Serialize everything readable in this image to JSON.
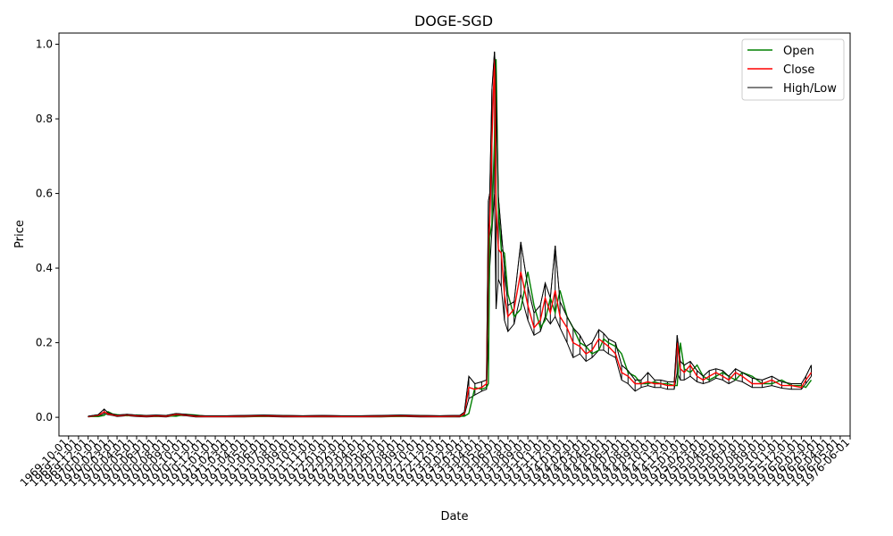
{
  "chart_data": {
    "type": "line",
    "title": "DOGE-SGD",
    "xlabel": "Date",
    "ylabel": "Price",
    "ylim": [
      -0.05,
      1.03
    ],
    "yticks": [
      0.0,
      0.2,
      0.4,
      0.6,
      0.8,
      1.0
    ],
    "ytick_labels": [
      "0.0",
      "0.2",
      "0.4",
      "0.6",
      "0.8",
      "1.0"
    ],
    "xlim": [
      "1969-09-01",
      "1976-06-01"
    ],
    "xtick_labels": [
      "1969-10-01",
      "1969-11-01",
      "1969-12-01",
      "1970-01-01",
      "1970-02-01",
      "1970-03-01",
      "1970-04-01",
      "1970-05-01",
      "1970-06-01",
      "1970-07-01",
      "1970-08-01",
      "1970-09-01",
      "1970-10-01",
      "1970-11-01",
      "1970-12-01",
      "1971-01-01",
      "1971-02-01",
      "1971-03-01",
      "1971-04-01",
      "1971-05-01",
      "1971-06-01",
      "1971-07-01",
      "1971-08-01",
      "1971-09-01",
      "1971-10-01",
      "1971-11-01",
      "1971-12-01",
      "1972-01-01",
      "1972-02-01",
      "1972-03-01",
      "1972-04-01",
      "1972-05-01",
      "1972-06-01",
      "1972-07-01",
      "1972-08-01",
      "1972-09-01",
      "1972-10-01",
      "1972-11-01",
      "1972-12-01",
      "1973-01-01",
      "1973-02-01",
      "1973-03-01",
      "1973-04-01",
      "1973-05-01",
      "1973-06-01",
      "1973-07-01",
      "1973-08-01",
      "1973-09-01",
      "1973-10-01",
      "1973-11-01",
      "1973-12-01",
      "1974-01-01",
      "1974-02-01",
      "1974-03-01",
      "1974-04-01",
      "1974-05-01",
      "1974-06-01",
      "1974-07-01",
      "1974-08-01",
      "1974-09-01",
      "1974-10-01",
      "1974-11-01",
      "1974-12-01",
      "1975-01-01",
      "1975-02-01",
      "1975-03-01",
      "1975-04-01",
      "1975-05-01",
      "1975-06-01",
      "1975-07-01",
      "1975-08-01",
      "1975-09-01",
      "1975-10-01",
      "1975-11-01",
      "1975-12-01",
      "1976-01-01",
      "1976-02-01",
      "1976-03-01",
      "1976-04-01",
      "1976-05-01",
      "1976-06-01"
    ],
    "legend": {
      "position": "top-right",
      "entries": [
        "Open",
        "Close",
        "High/Low"
      ]
    },
    "grid": false,
    "series": [
      {
        "name": "Open",
        "color": "#008000",
        "role": "open"
      },
      {
        "name": "Close",
        "color": "#ff0000",
        "role": "close"
      },
      {
        "name": "High/Low",
        "color": "#000000",
        "role": "highlow"
      }
    ],
    "x": [
      "1969-12-01",
      "1970-01-01",
      "1970-01-20",
      "1970-02-01",
      "1970-02-15",
      "1970-03-01",
      "1970-04-01",
      "1970-05-01",
      "1970-06-01",
      "1970-07-01",
      "1970-08-01",
      "1970-09-01",
      "1970-10-01",
      "1970-11-01",
      "1970-12-01",
      "1971-02-01",
      "1971-04-01",
      "1971-06-01",
      "1971-08-01",
      "1971-10-01",
      "1971-12-01",
      "1972-02-01",
      "1972-04-01",
      "1972-06-01",
      "1972-08-01",
      "1972-10-01",
      "1972-12-01",
      "1973-01-15",
      "1973-02-01",
      "1973-02-15",
      "1973-03-01",
      "1973-03-20",
      "1973-04-10",
      "1973-04-25",
      "1973-05-01",
      "1973-05-05",
      "1973-05-12",
      "1973-05-20",
      "1973-05-25",
      "1973-06-01",
      "1973-06-10",
      "1973-06-20",
      "1973-07-01",
      "1973-07-20",
      "1973-08-10",
      "1973-09-01",
      "1973-09-20",
      "1973-10-10",
      "1973-10-25",
      "1973-11-10",
      "1973-11-25",
      "1973-12-10",
      "1974-01-01",
      "1974-01-20",
      "1974-02-10",
      "1974-03-01",
      "1974-03-20",
      "1974-04-10",
      "1974-04-25",
      "1974-05-10",
      "1974-06-01",
      "1974-06-20",
      "1974-07-10",
      "1974-08-01",
      "1974-08-20",
      "1974-09-10",
      "1974-10-01",
      "1974-10-20",
      "1974-11-10",
      "1974-12-01",
      "1974-12-10",
      "1974-12-20",
      "1975-01-01",
      "1975-01-20",
      "1975-02-10",
      "1975-03-01",
      "1975-03-20",
      "1975-04-10",
      "1975-05-01",
      "1975-05-20",
      "1975-06-10",
      "1975-07-01",
      "1975-08-01",
      "1975-09-01",
      "1975-10-01",
      "1975-11-01",
      "1975-12-01",
      "1976-01-01",
      "1976-01-15",
      "1976-02-01"
    ],
    "close": [
      0.002,
      0.005,
      0.015,
      0.009,
      0.007,
      0.004,
      0.006,
      0.004,
      0.003,
      0.004,
      0.003,
      0.008,
      0.006,
      0.003,
      0.002,
      0.002,
      0.003,
      0.004,
      0.003,
      0.002,
      0.003,
      0.002,
      0.002,
      0.003,
      0.004,
      0.003,
      0.002,
      0.003,
      0.003,
      0.01,
      0.08,
      0.075,
      0.08,
      0.09,
      0.48,
      0.52,
      0.74,
      0.96,
      0.56,
      0.45,
      0.44,
      0.33,
      0.27,
      0.29,
      0.39,
      0.3,
      0.24,
      0.26,
      0.32,
      0.28,
      0.34,
      0.27,
      0.24,
      0.2,
      0.19,
      0.17,
      0.18,
      0.21,
      0.2,
      0.19,
      0.17,
      0.12,
      0.11,
      0.09,
      0.09,
      0.095,
      0.09,
      0.09,
      0.085,
      0.085,
      0.2,
      0.13,
      0.12,
      0.14,
      0.11,
      0.1,
      0.11,
      0.12,
      0.11,
      0.1,
      0.12,
      0.11,
      0.09,
      0.09,
      0.1,
      0.085,
      0.085,
      0.08,
      0.1,
      0.12
    ],
    "high": [
      0.003,
      0.007,
      0.022,
      0.012,
      0.009,
      0.006,
      0.008,
      0.006,
      0.005,
      0.006,
      0.005,
      0.01,
      0.008,
      0.005,
      0.004,
      0.004,
      0.005,
      0.006,
      0.005,
      0.004,
      0.005,
      0.004,
      0.004,
      0.005,
      0.006,
      0.005,
      0.004,
      0.005,
      0.005,
      0.014,
      0.11,
      0.09,
      0.095,
      0.1,
      0.58,
      0.6,
      0.88,
      0.98,
      0.91,
      0.59,
      0.5,
      0.4,
      0.3,
      0.31,
      0.47,
      0.35,
      0.28,
      0.3,
      0.36,
      0.32,
      0.46,
      0.31,
      0.27,
      0.24,
      0.22,
      0.19,
      0.2,
      0.235,
      0.225,
      0.21,
      0.2,
      0.14,
      0.125,
      0.1,
      0.1,
      0.12,
      0.1,
      0.1,
      0.095,
      0.095,
      0.22,
      0.15,
      0.14,
      0.15,
      0.125,
      0.11,
      0.125,
      0.13,
      0.125,
      0.11,
      0.13,
      0.12,
      0.105,
      0.1,
      0.11,
      0.095,
      0.09,
      0.09,
      0.11,
      0.14
    ],
    "low": [
      0.001,
      0.003,
      0.01,
      0.007,
      0.005,
      0.002,
      0.004,
      0.002,
      0.001,
      0.002,
      0.001,
      0.005,
      0.004,
      0.001,
      0.001,
      0.001,
      0.001,
      0.002,
      0.001,
      0.001,
      0.001,
      0.001,
      0.001,
      0.001,
      0.002,
      0.001,
      0.001,
      0.001,
      0.001,
      0.006,
      0.05,
      0.06,
      0.07,
      0.075,
      0.22,
      0.4,
      0.5,
      0.6,
      0.29,
      0.37,
      0.35,
      0.26,
      0.23,
      0.25,
      0.33,
      0.26,
      0.22,
      0.23,
      0.27,
      0.25,
      0.27,
      0.24,
      0.2,
      0.16,
      0.17,
      0.15,
      0.16,
      0.18,
      0.18,
      0.17,
      0.16,
      0.1,
      0.09,
      0.07,
      0.08,
      0.085,
      0.08,
      0.08,
      0.075,
      0.075,
      0.12,
      0.1,
      0.1,
      0.11,
      0.095,
      0.09,
      0.095,
      0.105,
      0.1,
      0.09,
      0.1,
      0.095,
      0.08,
      0.08,
      0.085,
      0.078,
      0.075,
      0.075,
      0.09,
      0.11
    ]
  }
}
